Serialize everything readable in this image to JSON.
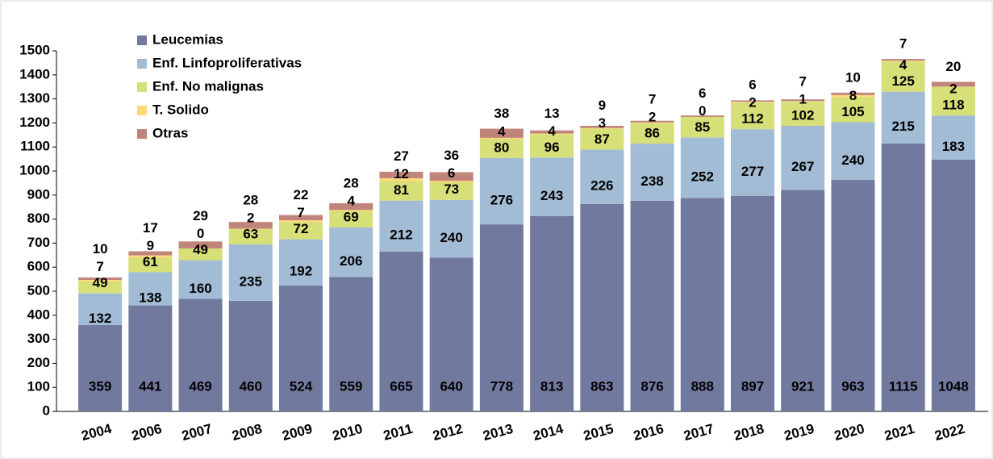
{
  "chart_data": {
    "type": "stacked_bar",
    "categories": [
      "2004",
      "2006",
      "2007",
      "2008",
      "2009",
      "2010",
      "2011",
      "2012",
      "2013",
      "2014",
      "2015",
      "2016",
      "2017",
      "2018",
      "2019",
      "2020",
      "2021",
      "2022"
    ],
    "series": [
      {
        "name": "Leucemias",
        "color": "#72799f",
        "values": [
          359,
          441,
          469,
          460,
          524,
          559,
          665,
          640,
          778,
          813,
          863,
          876,
          888,
          897,
          921,
          963,
          1115,
          1048
        ]
      },
      {
        "name": "Enf. Linfoproliferativas",
        "color": "#a3bcd6",
        "values": [
          132,
          138,
          160,
          235,
          192,
          206,
          212,
          240,
          276,
          243,
          226,
          238,
          252,
          277,
          267,
          240,
          215,
          183
        ]
      },
      {
        "name": "Enf. No malignas",
        "color": "#d6df78",
        "values": [
          49,
          61,
          49,
          63,
          72,
          69,
          81,
          73,
          80,
          96,
          87,
          86,
          85,
          112,
          102,
          105,
          125,
          118
        ]
      },
      {
        "name": "T. Solido",
        "color": "#ffd97a",
        "values": [
          7,
          9,
          0,
          2,
          7,
          4,
          12,
          6,
          4,
          4,
          3,
          2,
          0,
          2,
          1,
          8,
          4,
          2
        ]
      },
      {
        "name": "Otras",
        "color": "#c0857a",
        "values": [
          10,
          17,
          29,
          28,
          22,
          28,
          27,
          36,
          38,
          13,
          9,
          7,
          6,
          6,
          7,
          10,
          7,
          20
        ]
      }
    ],
    "ylim": [
      0,
      1500
    ],
    "yticks": [
      0,
      100,
      200,
      300,
      400,
      500,
      600,
      700,
      800,
      900,
      1000,
      1100,
      1200,
      1300,
      1400,
      1500
    ],
    "legend": "upper left"
  }
}
